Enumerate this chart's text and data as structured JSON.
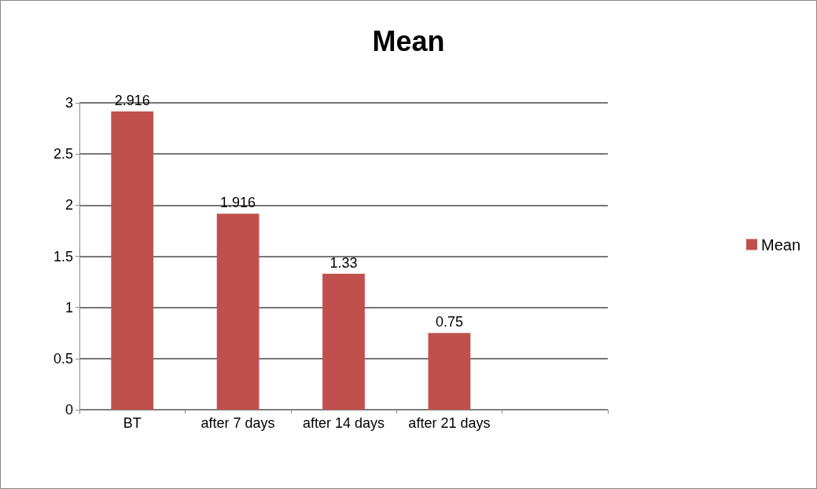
{
  "chart_data": {
    "type": "bar",
    "title": "Mean",
    "categories": [
      "BT",
      "after 7 days",
      "after 14 days",
      "after 21 days",
      null
    ],
    "series": [
      {
        "name": "Mean",
        "color": "#c0504d",
        "values": [
          2.916,
          1.916,
          1.33,
          0.75,
          null
        ]
      }
    ],
    "ylim": [
      0,
      3
    ],
    "yticks": [
      0,
      0.5,
      1,
      1.5,
      2,
      2.5,
      3
    ],
    "grid": "y",
    "legend": "right",
    "data_labels": true
  }
}
